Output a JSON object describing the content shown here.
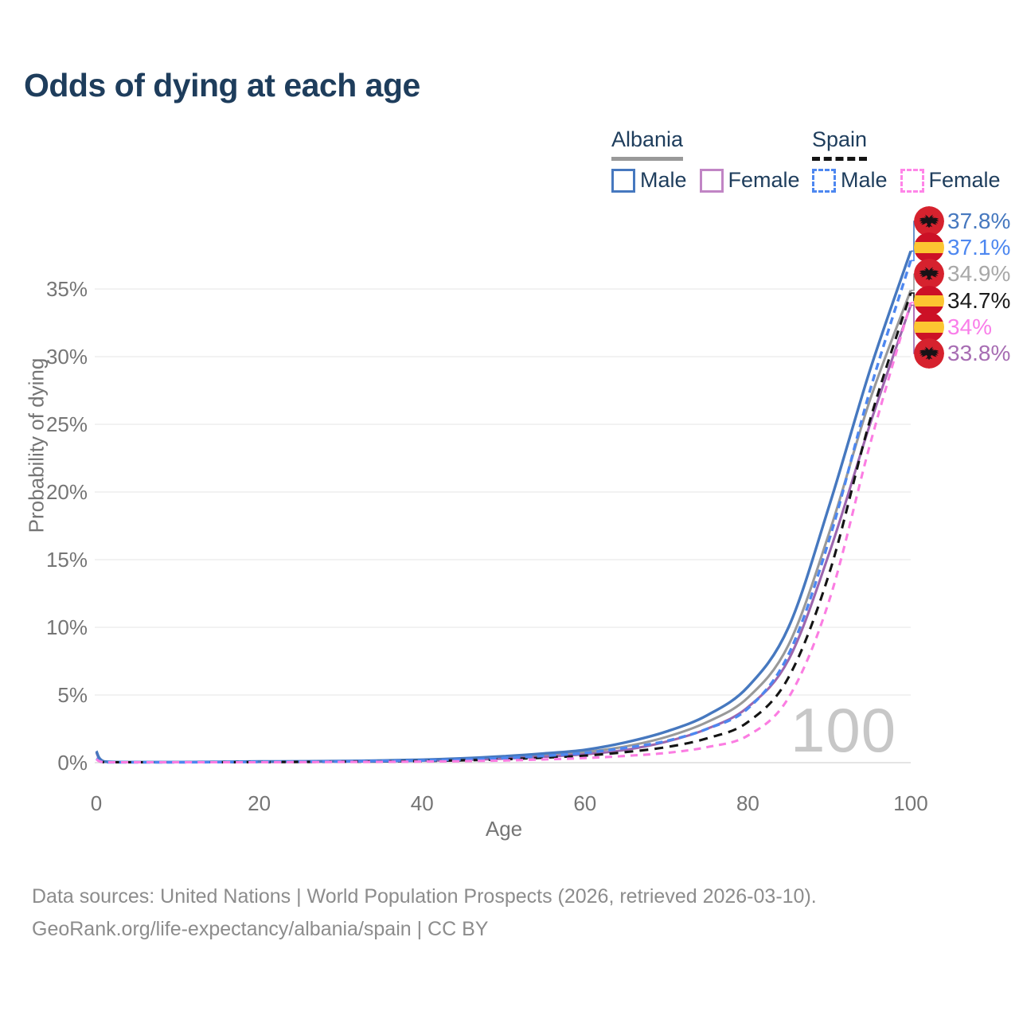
{
  "title": "Odds of dying at each age",
  "watermark": "100",
  "legend": {
    "groups": [
      {
        "id": "albania",
        "label": "Albania",
        "line_style": "solid",
        "line_color": "#999999",
        "items": [
          {
            "id": "albania-male",
            "label": "Male",
            "color": "#4678bf",
            "dashed": false
          },
          {
            "id": "albania-female",
            "label": "Female",
            "color": "#c185c5",
            "dashed": false
          }
        ]
      },
      {
        "id": "spain",
        "label": "Spain",
        "line_style": "dashed",
        "line_color": "#141414",
        "items": [
          {
            "id": "spain-male",
            "label": "Male",
            "color": "#4d87f0",
            "dashed": true
          },
          {
            "id": "spain-female",
            "label": "Female",
            "color": "#ff85e8",
            "dashed": true
          }
        ]
      }
    ]
  },
  "chart_data": {
    "type": "line",
    "title": "Odds of dying at each age",
    "xlabel": "Age",
    "ylabel": "Probability of dying",
    "xlim": [
      0,
      100
    ],
    "ylim_percent": [
      0,
      38
    ],
    "x_ticks": [
      0,
      20,
      40,
      60,
      80,
      100
    ],
    "y_ticks_percent": [
      0,
      5,
      10,
      15,
      20,
      25,
      30,
      35
    ],
    "grid": "horizontal",
    "legend_position": "top-right",
    "ages": [
      0,
      1,
      5,
      10,
      15,
      20,
      25,
      30,
      35,
      40,
      45,
      50,
      55,
      60,
      65,
      70,
      75,
      80,
      85,
      90,
      95,
      100
    ],
    "series": [
      {
        "name": "Albania Male",
        "country": "Albania",
        "sex": "Male",
        "color": "#4678bf",
        "dashed": false,
        "flag": "albania",
        "end_label": "37.8%",
        "end_label_color": "#4678bf",
        "values_percent": [
          0.85,
          0.08,
          0.04,
          0.04,
          0.06,
          0.09,
          0.1,
          0.12,
          0.16,
          0.22,
          0.32,
          0.47,
          0.68,
          0.95,
          1.5,
          2.3,
          3.5,
          5.6,
          10,
          19,
          29,
          37.8
        ]
      },
      {
        "name": "Spain Male",
        "country": "Spain",
        "sex": "Male",
        "color": "#4d87f0",
        "dashed": true,
        "flag": "spain",
        "end_label": "37.1%",
        "end_label_color": "#4d87f0",
        "values_percent": [
          0.3,
          0.03,
          0.02,
          0.02,
          0.04,
          0.06,
          0.07,
          0.09,
          0.12,
          0.16,
          0.23,
          0.34,
          0.5,
          0.72,
          1.1,
          1.6,
          2.5,
          4,
          8,
          16.5,
          27.5,
          37.1
        ]
      },
      {
        "name": "Albania",
        "country": "Albania",
        "sex": "Both",
        "color": "#999999",
        "dashed": false,
        "flag": "albania",
        "end_label": "34.9%",
        "end_label_color": "#a8a8a8",
        "values_percent": [
          0.8,
          0.07,
          0.035,
          0.035,
          0.05,
          0.07,
          0.08,
          0.1,
          0.13,
          0.18,
          0.26,
          0.38,
          0.55,
          0.78,
          1.2,
          1.9,
          3,
          4.8,
          8.7,
          17,
          26.8,
          34.9
        ]
      },
      {
        "name": "Spain",
        "country": "Spain",
        "sex": "Both",
        "color": "#141414",
        "dashed": true,
        "flag": "spain",
        "end_label": "34.7%",
        "end_label_color": "#1a1a1a",
        "values_percent": [
          0.28,
          0.025,
          0.015,
          0.015,
          0.03,
          0.04,
          0.05,
          0.07,
          0.09,
          0.12,
          0.17,
          0.25,
          0.37,
          0.52,
          0.78,
          1.15,
          1.8,
          3,
          6.3,
          14,
          25.3,
          34.7
        ]
      },
      {
        "name": "Spain Female",
        "country": "Spain",
        "sex": "Female",
        "color": "#fb7de2",
        "dashed": true,
        "flag": "spain",
        "end_label": "34%",
        "end_label_color": "#f97ee9",
        "values_percent": [
          0.25,
          0.02,
          0.01,
          0.01,
          0.02,
          0.03,
          0.04,
          0.05,
          0.06,
          0.08,
          0.11,
          0.16,
          0.24,
          0.34,
          0.5,
          0.72,
          1.15,
          2,
          4.8,
          12,
          23.5,
          34
        ]
      },
      {
        "name": "Albania Female",
        "country": "Albania",
        "sex": "Female",
        "color": "#9d66ae",
        "dashed": false,
        "flag": "albania",
        "end_label": "33.8%",
        "end_label_color": "#a76db3",
        "values_percent": [
          0.75,
          0.06,
          0.03,
          0.03,
          0.04,
          0.05,
          0.06,
          0.08,
          0.1,
          0.14,
          0.2,
          0.3,
          0.44,
          0.62,
          0.95,
          1.55,
          2.5,
          4.1,
          7.6,
          15.5,
          25,
          33.8
        ]
      }
    ],
    "draw_order": [
      "Albania",
      "Albania Female",
      "Albania Male",
      "Spain",
      "Spain Male",
      "Spain Female"
    ]
  },
  "footer": {
    "line1": "Data sources: United Nations | World Population Prospects (2026, retrieved 2026-03-10).",
    "line2": "GeoRank.org/life-expectancy/albania/spain | CC BY"
  }
}
